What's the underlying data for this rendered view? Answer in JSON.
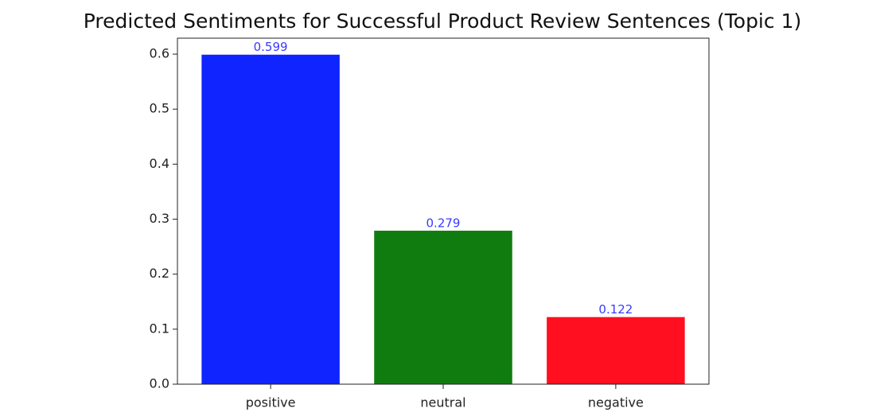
{
  "chart_data": {
    "type": "bar",
    "title": "Predicted Sentiments for Successful Product Review Sentences (Topic 1)",
    "categories": [
      "positive",
      "neutral",
      "negative"
    ],
    "values": [
      0.599,
      0.279,
      0.122
    ],
    "colors": [
      "#0f24ff",
      "#107c10",
      "#ff0f1f"
    ],
    "value_label_color": "#3a3aff",
    "ylim": [
      0,
      0.629
    ],
    "yticks": [
      {
        "value": 0,
        "label": "0.0"
      },
      0.1,
      0.2,
      0.3,
      0.4,
      0.5,
      0.6
    ]
  }
}
